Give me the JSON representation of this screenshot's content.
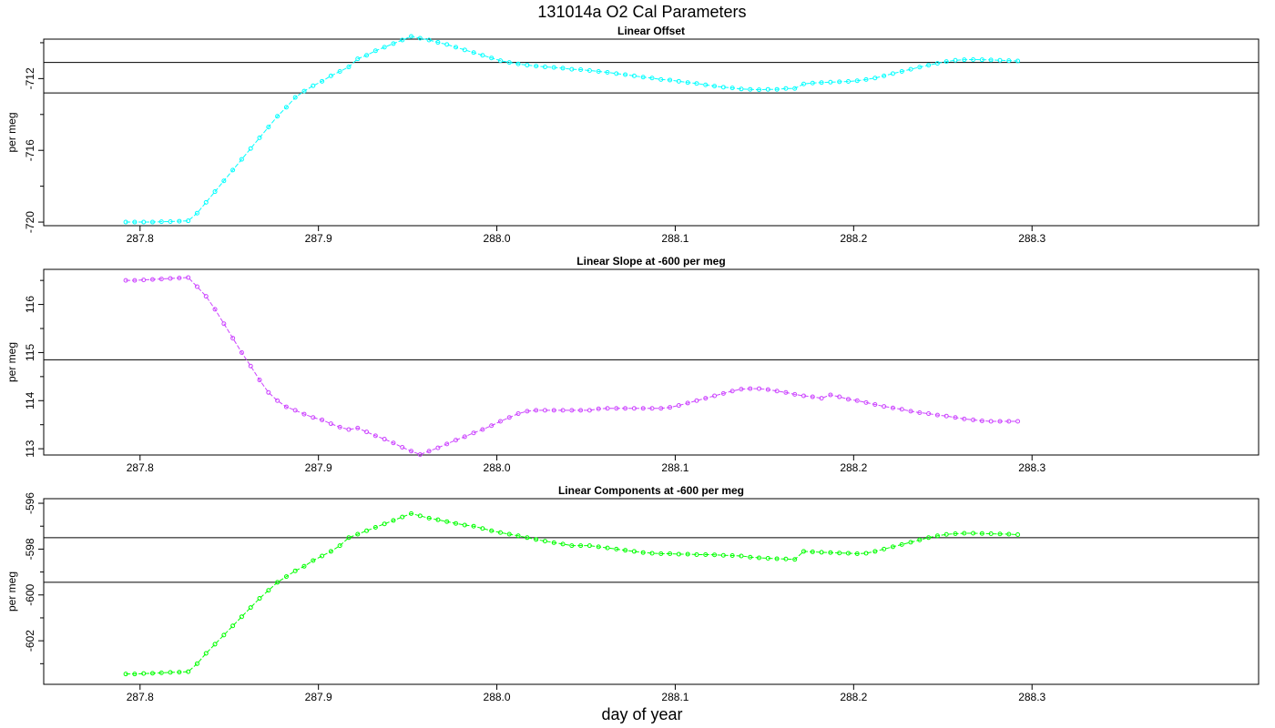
{
  "title": "131014a   O2 Cal Parameters",
  "xlabel": "day of year",
  "chart_data": [
    {
      "type": "line",
      "title": "Linear Offset",
      "ylabel": "per meg",
      "color": "#00ffff",
      "xlim": [
        287.746,
        288.427
      ],
      "ylim": [
        -720.2,
        -709.8
      ],
      "xticks": [
        "287.8",
        "287.9",
        "288.0",
        "288.1",
        "288.2",
        "288.3"
      ],
      "yticks": [
        "-712",
        "-716",
        "-720"
      ],
      "hlines": [
        -711.1,
        -712.8
      ],
      "x": [
        287.792,
        287.797,
        287.802,
        287.807,
        287.812,
        287.817,
        287.822,
        287.827,
        287.832,
        287.837,
        287.842,
        287.847,
        287.852,
        287.857,
        287.862,
        287.867,
        287.872,
        287.877,
        287.882,
        287.887,
        287.892,
        287.897,
        287.902,
        287.907,
        287.912,
        287.917,
        287.922,
        287.927,
        287.932,
        287.937,
        287.942,
        287.947,
        287.952,
        287.957,
        287.962,
        287.967,
        287.972,
        287.977,
        287.982,
        287.987,
        287.992,
        287.997,
        288.002,
        288.007,
        288.012,
        288.017,
        288.022,
        288.027,
        288.032,
        288.037,
        288.042,
        288.047,
        288.052,
        288.057,
        288.062,
        288.067,
        288.072,
        288.077,
        288.082,
        288.087,
        288.092,
        288.097,
        288.102,
        288.107,
        288.112,
        288.117,
        288.122,
        288.127,
        288.132,
        288.137,
        288.142,
        288.147,
        288.152,
        288.157,
        288.162,
        288.167,
        288.172,
        288.177,
        288.182,
        288.187,
        288.192,
        288.197,
        288.202,
        288.207,
        288.212,
        288.217,
        288.222,
        288.227,
        288.232,
        288.237,
        288.242,
        288.247,
        288.252,
        288.257,
        288.262,
        288.267,
        288.272,
        288.277,
        288.282,
        288.287,
        288.292
      ],
      "values": [
        -720.0,
        -720.0,
        -720.0,
        -720.0,
        -719.98,
        -719.97,
        -719.95,
        -719.93,
        -719.5,
        -718.9,
        -718.3,
        -717.7,
        -717.1,
        -716.5,
        -715.9,
        -715.3,
        -714.7,
        -714.1,
        -713.6,
        -713.05,
        -712.7,
        -712.4,
        -712.15,
        -711.85,
        -711.6,
        -711.35,
        -710.9,
        -710.7,
        -710.45,
        -710.25,
        -710.05,
        -709.85,
        -709.65,
        -709.75,
        -709.85,
        -709.98,
        -710.1,
        -710.25,
        -710.4,
        -710.55,
        -710.7,
        -710.85,
        -711.0,
        -711.1,
        -711.18,
        -711.25,
        -711.3,
        -711.35,
        -711.38,
        -711.42,
        -711.48,
        -711.5,
        -711.55,
        -711.6,
        -711.65,
        -711.72,
        -711.78,
        -711.85,
        -711.92,
        -711.97,
        -712.05,
        -712.08,
        -712.15,
        -712.22,
        -712.27,
        -712.35,
        -712.42,
        -712.48,
        -712.52,
        -712.58,
        -712.6,
        -712.62,
        -712.6,
        -712.6,
        -712.55,
        -712.55,
        -712.3,
        -712.25,
        -712.22,
        -712.2,
        -712.18,
        -712.16,
        -712.12,
        -712.05,
        -711.97,
        -711.85,
        -711.72,
        -711.6,
        -711.48,
        -711.36,
        -711.25,
        -711.15,
        -711.05,
        -710.98,
        -710.95,
        -710.94,
        -710.95,
        -710.96,
        -710.98,
        -711.0,
        -711.02
      ]
    },
    {
      "type": "line",
      "title": "Linear Slope at -600 per meg",
      "ylabel": "per meg",
      "color": "#cc44ff",
      "xlim": [
        287.746,
        288.427
      ],
      "ylim": [
        112.87,
        116.73
      ],
      "xticks": [
        "287.8",
        "287.9",
        "288.0",
        "288.1",
        "288.2",
        "288.3"
      ],
      "yticks": [
        "113",
        "114",
        "115",
        "116"
      ],
      "hlines": [
        114.85,
        112.87
      ],
      "x": [
        287.792,
        287.797,
        287.802,
        287.807,
        287.812,
        287.817,
        287.822,
        287.827,
        287.832,
        287.837,
        287.842,
        287.847,
        287.852,
        287.857,
        287.862,
        287.867,
        287.872,
        287.877,
        287.882,
        287.887,
        287.892,
        287.897,
        287.902,
        287.907,
        287.912,
        287.917,
        287.922,
        287.927,
        287.932,
        287.937,
        287.942,
        287.947,
        287.952,
        287.957,
        287.962,
        287.967,
        287.972,
        287.977,
        287.982,
        287.987,
        287.992,
        287.997,
        288.002,
        288.007,
        288.012,
        288.017,
        288.022,
        288.027,
        288.032,
        288.037,
        288.042,
        288.047,
        288.052,
        288.057,
        288.062,
        288.067,
        288.072,
        288.077,
        288.082,
        288.087,
        288.092,
        288.097,
        288.102,
        288.107,
        288.112,
        288.117,
        288.122,
        288.127,
        288.132,
        288.137,
        288.142,
        288.147,
        288.152,
        288.157,
        288.162,
        288.167,
        288.172,
        288.177,
        288.182,
        288.187,
        288.192,
        288.197,
        288.202,
        288.207,
        288.212,
        288.217,
        288.222,
        288.227,
        288.232,
        288.237,
        288.242,
        288.247,
        288.252,
        288.257,
        288.262,
        288.267,
        288.272,
        288.277,
        288.282,
        288.287,
        288.292
      ],
      "values": [
        116.5,
        116.5,
        116.51,
        116.52,
        116.53,
        116.54,
        116.55,
        116.56,
        116.37,
        116.17,
        115.9,
        115.6,
        115.3,
        115.0,
        114.72,
        114.43,
        114.17,
        114.0,
        113.87,
        113.8,
        113.72,
        113.65,
        113.6,
        113.52,
        113.45,
        113.4,
        113.43,
        113.35,
        113.27,
        113.2,
        113.12,
        113.03,
        112.95,
        112.88,
        112.95,
        113.02,
        113.1,
        113.18,
        113.25,
        113.33,
        113.4,
        113.48,
        113.57,
        113.65,
        113.73,
        113.78,
        113.8,
        113.8,
        113.8,
        113.8,
        113.8,
        113.8,
        113.8,
        113.83,
        113.84,
        113.84,
        113.84,
        113.84,
        113.84,
        113.84,
        113.84,
        113.86,
        113.9,
        113.95,
        114.0,
        114.05,
        114.1,
        114.15,
        114.2,
        114.24,
        114.25,
        114.25,
        114.23,
        114.2,
        114.17,
        114.13,
        114.1,
        114.08,
        114.05,
        114.12,
        114.08,
        114.03,
        114.0,
        113.96,
        113.92,
        113.88,
        113.85,
        113.82,
        113.78,
        113.75,
        113.73,
        113.7,
        113.68,
        113.65,
        113.62,
        113.6,
        113.58,
        113.57,
        113.57,
        113.57,
        113.57
      ]
    },
    {
      "type": "line",
      "title": "Linear Components at -600 per meg",
      "ylabel": "per meg",
      "color": "#00ff00",
      "xlim": [
        287.746,
        288.427
      ],
      "ylim": [
        -603.9,
        -595.8
      ],
      "xticks": [
        "287.8",
        "287.9",
        "288.0",
        "288.1",
        "288.2",
        "288.3"
      ],
      "yticks": [
        "-596",
        "-598",
        "-600",
        "-602"
      ],
      "hlines": [
        -597.5,
        -599.45
      ],
      "x": [
        287.792,
        287.797,
        287.802,
        287.807,
        287.812,
        287.817,
        287.822,
        287.827,
        287.832,
        287.837,
        287.842,
        287.847,
        287.852,
        287.857,
        287.862,
        287.867,
        287.872,
        287.877,
        287.882,
        287.887,
        287.892,
        287.897,
        287.902,
        287.907,
        287.912,
        287.917,
        287.922,
        287.927,
        287.932,
        287.937,
        287.942,
        287.947,
        287.952,
        287.957,
        287.962,
        287.967,
        287.972,
        287.977,
        287.982,
        287.987,
        287.992,
        287.997,
        288.002,
        288.007,
        288.012,
        288.017,
        288.022,
        288.027,
        288.032,
        288.037,
        288.042,
        288.047,
        288.052,
        288.057,
        288.062,
        288.067,
        288.072,
        288.077,
        288.082,
        288.087,
        288.092,
        288.097,
        288.102,
        288.107,
        288.112,
        288.117,
        288.122,
        288.127,
        288.132,
        288.137,
        288.142,
        288.147,
        288.152,
        288.157,
        288.162,
        288.167,
        288.172,
        288.177,
        288.182,
        288.187,
        288.192,
        288.197,
        288.202,
        288.207,
        288.212,
        288.217,
        288.222,
        288.227,
        288.232,
        288.237,
        288.242,
        288.247,
        288.252,
        288.257,
        288.262,
        288.267,
        288.272,
        288.277,
        288.282,
        288.287,
        288.292
      ],
      "values": [
        -603.45,
        -603.45,
        -603.43,
        -603.42,
        -603.4,
        -603.38,
        -603.37,
        -603.35,
        -603.0,
        -602.55,
        -602.15,
        -601.75,
        -601.35,
        -600.95,
        -600.55,
        -600.15,
        -599.8,
        -599.45,
        -599.2,
        -598.95,
        -598.75,
        -598.5,
        -598.3,
        -598.1,
        -597.85,
        -597.5,
        -597.35,
        -597.2,
        -597.05,
        -596.9,
        -596.75,
        -596.6,
        -596.45,
        -596.55,
        -596.65,
        -596.72,
        -596.8,
        -596.88,
        -596.95,
        -597.0,
        -597.1,
        -597.2,
        -597.28,
        -597.35,
        -597.42,
        -597.5,
        -597.58,
        -597.65,
        -597.72,
        -597.78,
        -597.85,
        -597.85,
        -597.85,
        -597.9,
        -597.95,
        -598.0,
        -598.05,
        -598.1,
        -598.15,
        -598.18,
        -598.2,
        -598.2,
        -598.22,
        -598.22,
        -598.24,
        -598.24,
        -598.25,
        -598.27,
        -598.28,
        -598.3,
        -598.35,
        -598.38,
        -598.4,
        -598.42,
        -598.43,
        -598.45,
        -598.1,
        -598.12,
        -598.14,
        -598.15,
        -598.17,
        -598.18,
        -598.2,
        -598.18,
        -598.1,
        -598.0,
        -597.9,
        -597.8,
        -597.7,
        -597.6,
        -597.5,
        -597.42,
        -597.36,
        -597.33,
        -597.31,
        -597.31,
        -597.32,
        -597.33,
        -597.34,
        -597.35,
        -597.37
      ]
    }
  ]
}
